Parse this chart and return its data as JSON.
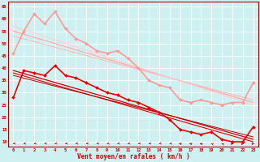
{
  "xlabel": "Vent moyen/en rafales ( km/h )",
  "xlim": [
    -0.5,
    23.5
  ],
  "ylim": [
    8,
    67
  ],
  "yticks": [
    10,
    15,
    20,
    25,
    30,
    35,
    40,
    45,
    50,
    55,
    60,
    65
  ],
  "xticks": [
    0,
    1,
    2,
    3,
    4,
    5,
    6,
    7,
    8,
    9,
    10,
    11,
    12,
    13,
    14,
    15,
    16,
    17,
    18,
    19,
    20,
    21,
    22,
    23
  ],
  "bg_color": "#cff0f0",
  "grid_color": "#ffffff",
  "series": [
    {
      "x": [
        0,
        1,
        2,
        3,
        4,
        5,
        6,
        7,
        8,
        9,
        10,
        11,
        12,
        13,
        14,
        15,
        16,
        17,
        18,
        19,
        20,
        21,
        22,
        23
      ],
      "y": [
        28,
        39,
        38,
        37,
        41,
        37,
        36,
        34,
        32,
        30,
        29,
        27,
        26,
        24,
        22,
        19,
        15,
        14,
        13,
        14,
        11,
        10,
        10,
        16
      ],
      "color": "#ee0000",
      "lw": 1.2,
      "marker": "D",
      "ms": 2.0
    },
    {
      "x": [
        0,
        23
      ],
      "y": [
        39,
        11
      ],
      "color": "#cc0000",
      "lw": 0.9,
      "marker": null,
      "ms": 0
    },
    {
      "x": [
        0,
        23
      ],
      "y": [
        38,
        10
      ],
      "color": "#dd0000",
      "lw": 0.8,
      "marker": null,
      "ms": 0
    },
    {
      "x": [
        0,
        23
      ],
      "y": [
        37,
        12
      ],
      "color": "#bb0000",
      "lw": 0.7,
      "marker": null,
      "ms": 0
    },
    {
      "x": [
        0,
        1,
        2,
        3,
        4,
        5,
        6,
        7,
        8,
        9,
        10,
        11,
        12,
        13,
        14,
        15,
        16,
        17,
        18,
        19,
        20,
        21,
        22,
        23
      ],
      "y": [
        46,
        55,
        62,
        58,
        63,
        56,
        52,
        50,
        47,
        46,
        47,
        44,
        40,
        35,
        33,
        32,
        27,
        26,
        27,
        26,
        25,
        26,
        26,
        34
      ],
      "color": "#ff9999",
      "lw": 1.2,
      "marker": "D",
      "ms": 2.0
    },
    {
      "x": [
        0,
        23
      ],
      "y": [
        55,
        26
      ],
      "color": "#ffaaaa",
      "lw": 0.9,
      "marker": null,
      "ms": 0
    },
    {
      "x": [
        0,
        23
      ],
      "y": [
        53,
        27
      ],
      "color": "#ffbbbb",
      "lw": 0.8,
      "marker": null,
      "ms": 0
    },
    {
      "x": [
        0,
        23
      ],
      "y": [
        57,
        25
      ],
      "color": "#ffcccc",
      "lw": 0.7,
      "marker": null,
      "ms": 0
    }
  ],
  "arrow_angles": [
    225,
    225,
    225,
    225,
    225,
    225,
    225,
    225,
    225,
    225,
    225,
    225,
    225,
    225,
    225,
    225,
    270,
    270,
    270,
    315,
    315,
    90,
    90,
    90
  ]
}
